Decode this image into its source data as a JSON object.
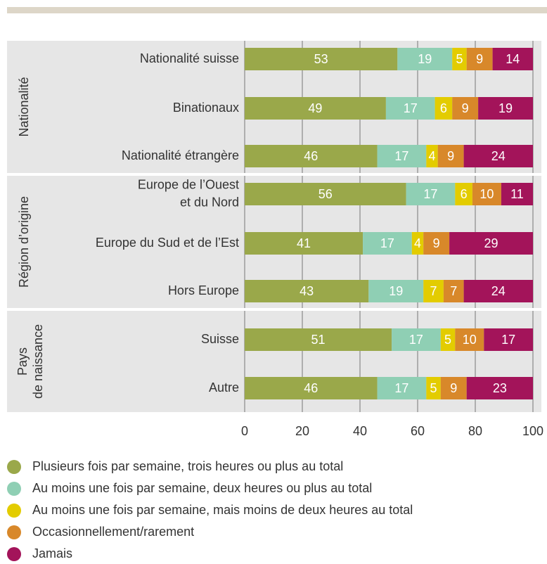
{
  "chart_data": {
    "type": "stacked-barh",
    "groups": [
      {
        "name": [
          "Nationalité"
        ],
        "categories": [
          [
            "Nationalité suisse"
          ],
          [
            "Binationaux"
          ],
          [
            "Nationalité étrangère"
          ]
        ]
      },
      {
        "name": [
          "Région d’origine"
        ],
        "categories": [
          [
            "Europe de l’Ouest",
            "et du Nord"
          ],
          [
            "Europe du Sud et de l’Est"
          ],
          [
            "Hors Europe"
          ]
        ]
      },
      {
        "name": [
          "Pays",
          "de naissance"
        ],
        "categories": [
          [
            "Suisse"
          ],
          [
            "Autre"
          ]
        ]
      }
    ],
    "series": [
      {
        "name": "Plusieurs fois par semaine, trois heures ou plus au total",
        "color": "#9aa84a",
        "values": [
          53,
          49,
          46,
          56,
          41,
          43,
          51,
          46
        ]
      },
      {
        "name": "Au moins une fois par semaine, deux heures ou plus au total",
        "color": "#8fcfb4",
        "values": [
          19,
          17,
          17,
          17,
          17,
          19,
          17,
          17
        ]
      },
      {
        "name": "Au moins une fois par semaine, mais moins de deux heures au total",
        "color": "#e3cc00",
        "values": [
          5,
          6,
          4,
          6,
          4,
          7,
          5,
          5
        ]
      },
      {
        "name": "Occasionnellement/rarement",
        "color": "#d8882a",
        "values": [
          9,
          9,
          9,
          10,
          9,
          7,
          10,
          9
        ]
      },
      {
        "name": "Jamais",
        "color": "#a3145a",
        "values": [
          14,
          19,
          24,
          11,
          29,
          24,
          17,
          23
        ]
      }
    ],
    "xlim": [
      0,
      100
    ],
    "xticks": [
      0,
      20,
      40,
      60,
      80,
      100
    ],
    "grid": true
  }
}
